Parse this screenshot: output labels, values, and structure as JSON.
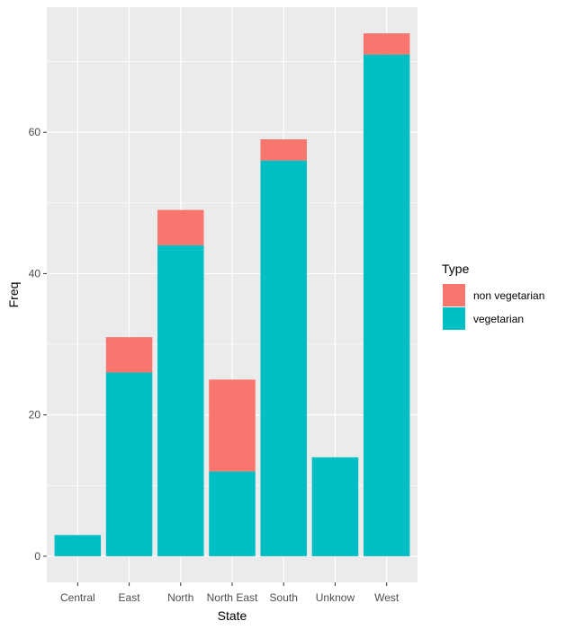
{
  "chart_data": {
    "type": "bar",
    "stacked": true,
    "xlabel": "State",
    "ylabel": "Freq",
    "categories": [
      "Central",
      "East",
      "North",
      "North East",
      "South",
      "Unknow",
      "West"
    ],
    "series": [
      {
        "name": "vegetarian",
        "values": [
          3,
          26,
          44,
          12,
          56,
          14,
          71
        ]
      },
      {
        "name": "non vegetarian",
        "values": [
          0,
          5,
          5,
          13,
          3,
          0,
          3
        ]
      }
    ],
    "ylim": [
      -3.7,
      77.7
    ],
    "yticks": [
      0,
      20,
      40,
      60
    ],
    "grid": true,
    "legend": {
      "title": "Type",
      "position": "right",
      "entries": [
        {
          "label": "non vegetarian",
          "series": "non vegetarian"
        },
        {
          "label": "vegetarian",
          "series": "vegetarian"
        }
      ]
    },
    "colors": {
      "vegetarian": "#00BFC4",
      "non vegetarian": "#F8766D",
      "panel_background": "#EBEBEB",
      "grid": "#FFFFFF"
    }
  }
}
